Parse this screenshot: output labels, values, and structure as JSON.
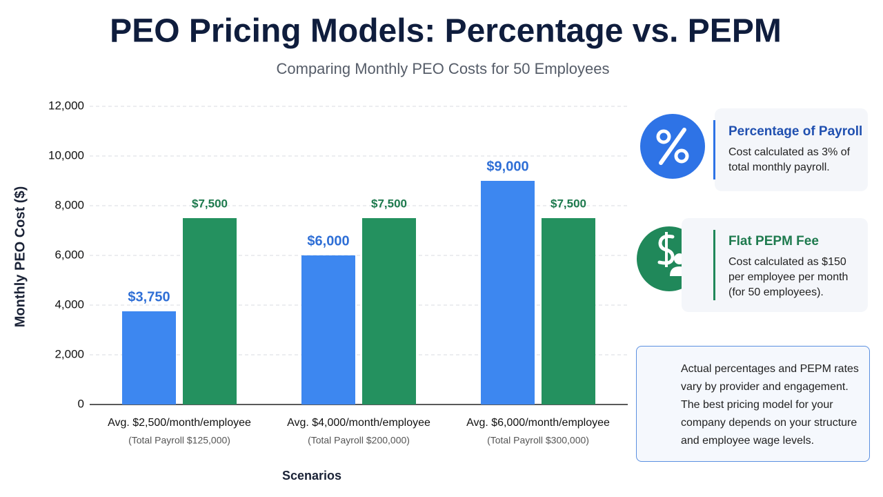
{
  "chart_data": {
    "type": "bar",
    "title": "PEO Pricing Models: Percentage vs. PEPM",
    "subtitle": "Comparing Monthly PEO Costs for 50 Employees",
    "y_label": "Monthly PEO Cost ($)",
    "x_label": "Scenarios",
    "categories": [
      "Avg. $2,500/month/employee",
      "Avg. $4,000/month/employee",
      "Avg. $6,000/month/employee"
    ],
    "category_notes": [
      "(Total Payroll $125,000)",
      "(Total Payroll $200,000)",
      "(Total Payroll $300,000)"
    ],
    "series": [
      {
        "name": "Percentage of Payroll",
        "color": "#3d87f0",
        "label_color": "#2f6fd6",
        "values": [
          3750,
          6000,
          9000
        ],
        "value_labels": [
          "$3,750",
          "$6,000",
          "$9,000"
        ]
      },
      {
        "name": "Flat PEPM Fee",
        "color": "#24915f",
        "label_color": "#1e7a4e",
        "values": [
          7500,
          7500,
          7500
        ],
        "value_labels": [
          "$7,500",
          "$7,500",
          "$7,500"
        ]
      }
    ],
    "ylim": [
      0,
      12000
    ],
    "yticks": [
      0,
      {
        "value": 2000,
        "label": "2,000"
      },
      {
        "value": 4000,
        "label": "4,000"
      },
      {
        "value": 6000,
        "label": "6,000"
      },
      {
        "value": 8000,
        "label": "8,000"
      },
      {
        "value": 10000,
        "label": "10,000"
      },
      {
        "value": 12000,
        "label": "12,000"
      }
    ],
    "grid": true
  },
  "cards": [
    {
      "description": "Cost calculated as 3% of total monthly payroll."
    },
    {
      "description": "Cost calculated as $150 per employee per month (for 50 employees)."
    }
  ],
  "note": "Actual percentages and PEPM rates vary by provider and engagement. The best pricing model for your company depends on your structure and employee wage levels."
}
